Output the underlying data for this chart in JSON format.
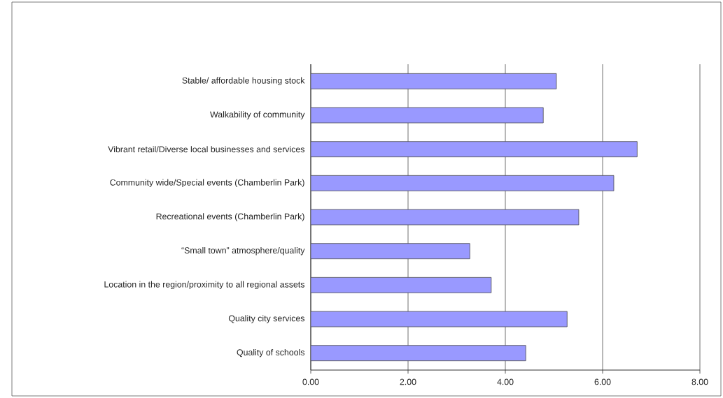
{
  "chart_data": {
    "type": "bar",
    "orientation": "horizontal",
    "categories": [
      "Stable/ affordable housing stock",
      "Walkability of community",
      "Vibrant retail/Diverse local businesses and services",
      "Community wide/Special events (Chamberlin Park)",
      "Recreational events (Chamberlin Park)",
      "“Small town” atmosphere/quality",
      "Location in the region/proximity to all regional assets",
      "Quality city services",
      "Quality of schools"
    ],
    "values": [
      5.05,
      4.78,
      6.71,
      6.23,
      5.51,
      3.27,
      3.71,
      5.27,
      4.42
    ],
    "color": "#9999ff",
    "xlim": [
      0,
      8
    ],
    "xticks": [
      {
        "value": 0,
        "label": "0.00"
      },
      {
        "value": 2,
        "label": "2.00"
      },
      {
        "value": 4,
        "label": "4.00"
      },
      {
        "value": 6,
        "label": "6.00"
      },
      {
        "value": 8,
        "label": "8.00"
      }
    ],
    "grid": "x"
  }
}
